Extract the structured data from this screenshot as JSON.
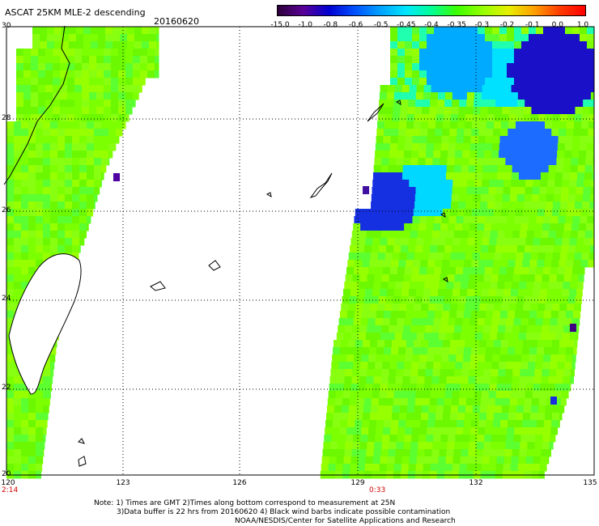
{
  "title": "ASCAT 25KM MLE-2 descending",
  "date": "20160620",
  "colorbar": {
    "labels": [
      "-15.0",
      "-1.0",
      "-0.8",
      "-0.6",
      "-0.5",
      "-0.45",
      "-0.4",
      "-0.35",
      "-0.3",
      "-0.2",
      "-0.1",
      "0.0",
      "1.0"
    ],
    "colors": [
      "#2b0038",
      "#5a0096",
      "#0000d2",
      "#0050ff",
      "#00a0ff",
      "#00e6ff",
      "#00ff96",
      "#3cff00",
      "#96ff00",
      "#e6f000",
      "#ffa000",
      "#ff3c00",
      "#ff0000"
    ]
  },
  "axes": {
    "lat_labels": [
      "30",
      "28",
      "26",
      "24",
      "22",
      "20"
    ],
    "lon_labels": [
      "120",
      "123",
      "126",
      "129",
      "132",
      "135"
    ]
  },
  "swath_times": {
    "left": "2:14",
    "right": "0:33"
  },
  "notes": {
    "line1": "Note: 1) Times are GMT 2)Times along bottom correspond to measurement at 25N",
    "line2": "3)Data buffer is 22 hrs from 20160620 4) Black wind barbs indicate possible contamination",
    "line3": "NOAA/NESDIS/Center for Satellite Applications and Research"
  }
}
